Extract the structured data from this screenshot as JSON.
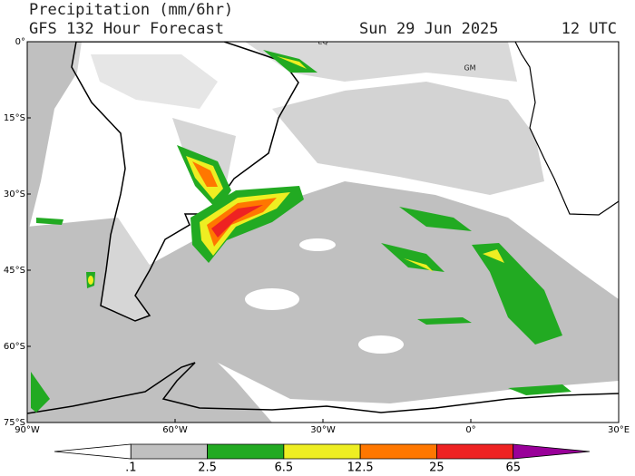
{
  "header": {
    "title": "Precipitation (mm/6hr)",
    "subtitle": "GFS 132 Hour Forecast",
    "date": "Sun 29 Jun 2025",
    "time": "12 UTC"
  },
  "map": {
    "lat_labels": [
      "0°",
      "15°S",
      "30°S",
      "45°S",
      "60°S",
      "75°S"
    ],
    "lon_labels": [
      "90°W",
      "60°W",
      "30°W",
      "0°",
      "30°E"
    ],
    "annotations": [
      "EQ",
      "GM"
    ]
  },
  "legend": {
    "labels": [
      ".1",
      "2.5",
      "6.5",
      "12.5",
      "25",
      "65"
    ],
    "colors": [
      "#ffffff",
      "#c0c0c0",
      "#22aa22",
      "#eeee22",
      "#ff7700",
      "#ee2222",
      "#990099"
    ]
  }
}
